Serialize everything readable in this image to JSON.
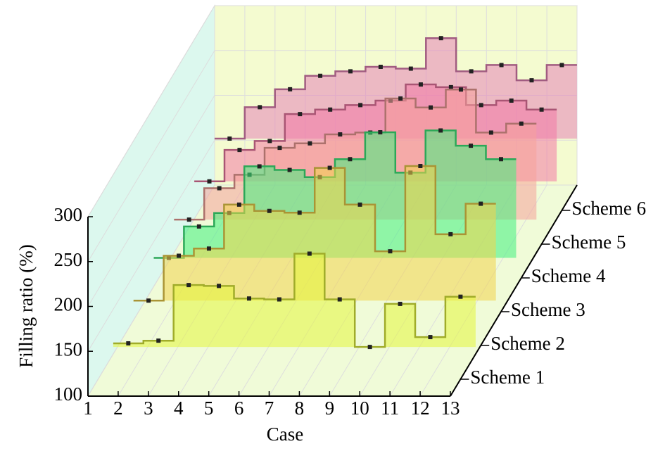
{
  "chart_data": {
    "type": "step3d",
    "x_label": "Case",
    "y_label": "Filling ratio (%)",
    "x": [
      2,
      3,
      4,
      5,
      6,
      7,
      8,
      9,
      10,
      11,
      12,
      13
    ],
    "xlim": [
      1,
      13
    ],
    "xticks": [
      1,
      2,
      3,
      4,
      5,
      6,
      7,
      8,
      9,
      10,
      11,
      12,
      13
    ],
    "ylim": [
      100,
      300
    ],
    "yticks": [
      100,
      150,
      200,
      250,
      300
    ],
    "grid": true,
    "series": [
      {
        "name": "Scheme 1",
        "color": "#e4f53c",
        "values": [
          140,
          143,
          205,
          204,
          190,
          189,
          240,
          189,
          136,
          184,
          147,
          192
        ]
      },
      {
        "name": "Scheme 2",
        "color": "#f3d44c",
        "values": [
          150,
          200,
          208,
          257,
          250,
          248,
          298,
          257,
          205,
          300,
          224,
          258
        ]
      },
      {
        "name": "Scheme 3",
        "color": "#3ff07e",
        "values": [
          160,
          195,
          210,
          262,
          258,
          250,
          270,
          300,
          255,
          302,
          285,
          270
        ]
      },
      {
        "name": "Scheme 4",
        "color": "#f5a29a",
        "values": [
          165,
          200,
          215,
          245,
          250,
          260,
          262,
          300,
          290,
          310,
          262,
          272
        ]
      },
      {
        "name": "Scheme 5",
        "color": "#f27aa6",
        "values": [
          170,
          205,
          215,
          245,
          250,
          255,
          260,
          278,
          275,
          255,
          260,
          250
        ]
      },
      {
        "name": "Scheme 6",
        "color": "#e684b8",
        "values": [
          180,
          215,
          235,
          250,
          255,
          260,
          258,
          292,
          255,
          262,
          245,
          262
        ]
      }
    ]
  }
}
